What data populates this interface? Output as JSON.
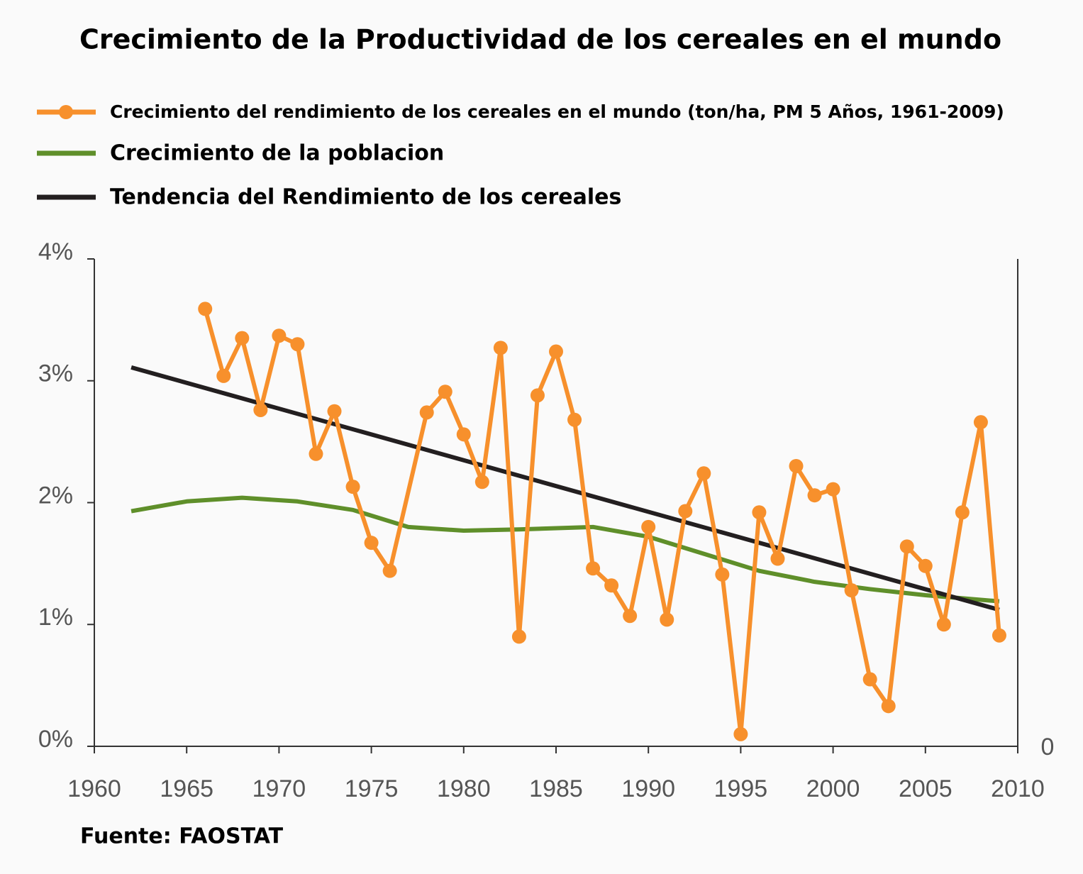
{
  "chart_data": {
    "type": "line",
    "title": "Crecimiento de la Productividad de los cereales en el mundo",
    "annotations": [
      "Fuente: FAOSTAT"
    ],
    "xlim": [
      1960,
      2010
    ],
    "xticks": [
      1960,
      1965,
      1970,
      1975,
      1980,
      1985,
      1990,
      1995,
      2000,
      2005,
      2010
    ],
    "ylim": [
      0,
      4
    ],
    "yticks": [
      {
        "value": 0,
        "label": "0%"
      },
      {
        "value": 1,
        "label": "1%"
      },
      {
        "value": 2,
        "label": "2%"
      },
      {
        "value": 3,
        "label": "3%"
      },
      {
        "value": 4,
        "label": "4%"
      }
    ],
    "y2lim": [
      0,
      4
    ],
    "y2ticks": [
      0
    ],
    "grid": false,
    "legend": "top",
    "series": [
      {
        "name": "Crecimiento del rendimiento de los cereales en el mundo (ton/ha,  PM 5 Años, 1961-2009)",
        "color": "#f7902c",
        "markers": true,
        "x": [
          1966,
          1967,
          1968,
          1969,
          1970,
          1971,
          1972,
          1973,
          1974,
          1975,
          1976,
          1978,
          1979,
          1980,
          1981,
          1982,
          1983,
          1984,
          1985,
          1986,
          1987,
          1988,
          1989,
          1990,
          1991,
          1992,
          1993,
          1994,
          1995,
          1996,
          1997,
          1998,
          1999,
          2000,
          2001,
          2002,
          2003,
          2004,
          2005,
          2006,
          2007,
          2008,
          2009
        ],
        "values": [
          3.59,
          3.04,
          3.35,
          2.76,
          3.37,
          3.3,
          2.4,
          2.75,
          2.13,
          1.67,
          1.44,
          2.74,
          2.91,
          2.56,
          2.17,
          3.27,
          0.9,
          2.88,
          3.24,
          2.68,
          1.46,
          1.32,
          1.07,
          1.8,
          1.04,
          1.93,
          2.24,
          1.41,
          0.1,
          1.92,
          1.54,
          2.3,
          2.06,
          2.11,
          1.28,
          0.55,
          0.33,
          1.64,
          1.48,
          1.0,
          1.92,
          2.66,
          0.91
        ]
      },
      {
        "name": "Crecimiento de la poblacion",
        "color": "#5f8f2a",
        "markers": false,
        "x": [
          1962,
          1965,
          1968,
          1971,
          1974,
          1977,
          1980,
          1983,
          1987,
          1990,
          1993,
          1996,
          1999,
          2002,
          2005,
          2009
        ],
        "values": [
          1.93,
          2.01,
          2.04,
          2.01,
          1.94,
          1.8,
          1.77,
          1.78,
          1.8,
          1.72,
          1.58,
          1.44,
          1.35,
          1.29,
          1.24,
          1.19
        ]
      },
      {
        "name": "Tendencia del Rendimiento de los cereales",
        "color": "#231f20",
        "markers": false,
        "x": [
          1962,
          2009
        ],
        "values": [
          3.11,
          1.12
        ]
      }
    ]
  }
}
